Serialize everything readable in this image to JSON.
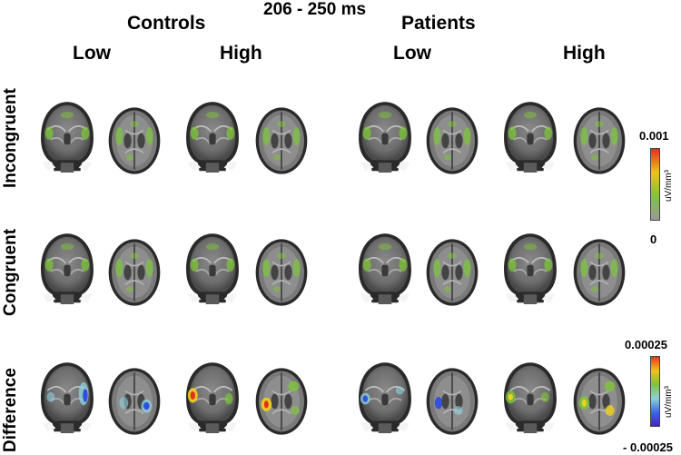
{
  "figure": {
    "title": "206 - 250 ms",
    "groups": [
      "Controls",
      "Patients"
    ],
    "conditions": [
      "Low",
      "High",
      "Low",
      "High"
    ],
    "rows": [
      "Incongruent",
      "Congruent",
      "Difference"
    ],
    "colorbars": [
      {
        "max": "0.001",
        "min": "0",
        "unit": "uV/mm³",
        "colors": [
          "#9a9a9a",
          "#7fc43a",
          "#f0c020",
          "#e0301e"
        ]
      },
      {
        "max": "0.00025",
        "min": "- 0.00025",
        "unit": "uV/mm³",
        "colors": [
          "#e63a1e",
          "#f0c020",
          "#7fc43a",
          "#8fd1d8",
          "#3a6ae0",
          "#4a22c0"
        ]
      }
    ],
    "activation_colors": {
      "green": "#7ec63a",
      "yellow": "#f2d21c",
      "red": "#e02a1a",
      "cyan": "#8fd1dc",
      "blue": "#2a4adf"
    }
  }
}
